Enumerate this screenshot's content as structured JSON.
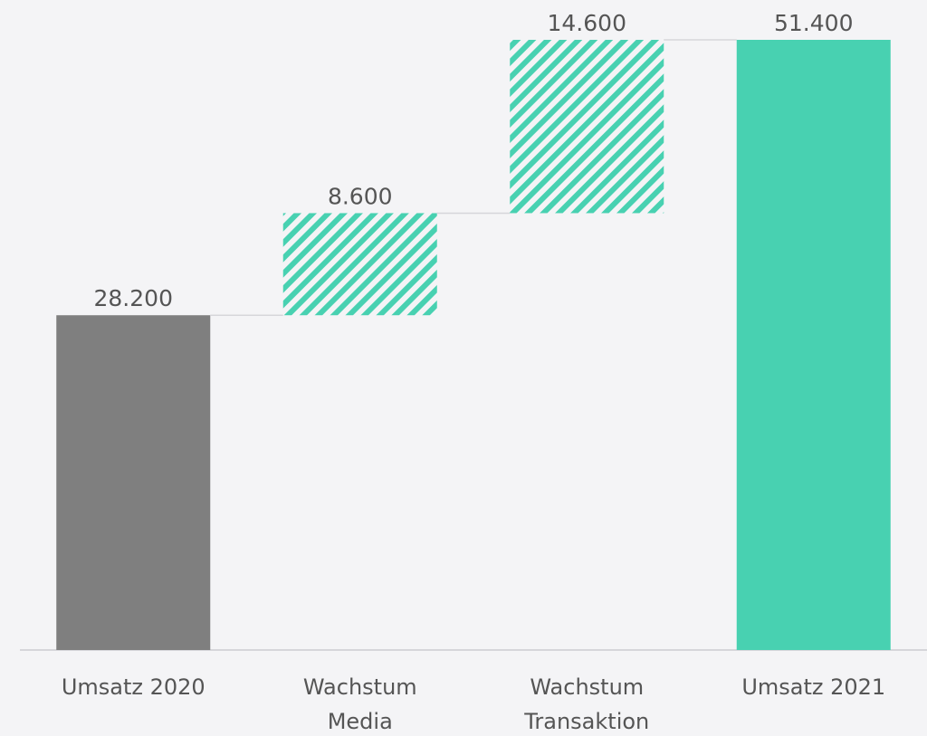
{
  "chart_data": {
    "type": "waterfall",
    "categories": [
      "Umsatz 2020",
      "Wachstum\nMedia",
      "Wachstum\nTransaktion",
      "Umsatz 2021"
    ],
    "values": [
      28200,
      8600,
      14600,
      51400
    ],
    "value_labels": [
      "28.200",
      "8.600",
      "14.600",
      "51.400"
    ],
    "measure": [
      "absolute",
      "relative",
      "relative",
      "total"
    ],
    "colors": [
      "#7f7f7f",
      "#48d1b1",
      "#48d1b1",
      "#48d1b1"
    ],
    "ylim": [
      0,
      51400
    ]
  }
}
